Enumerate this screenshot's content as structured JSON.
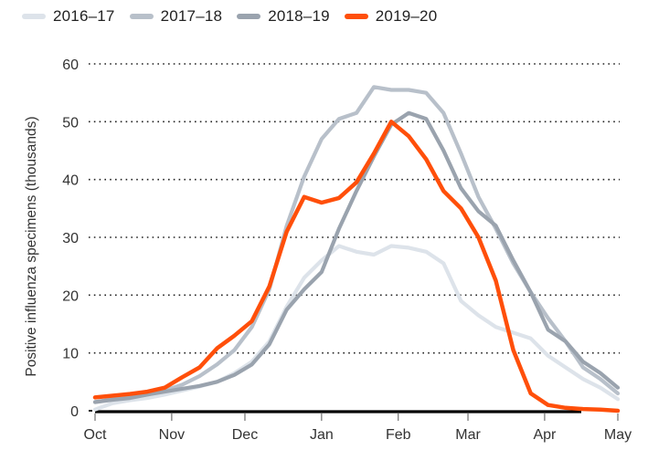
{
  "chart_data": {
    "type": "line",
    "title": "",
    "xlabel": "",
    "ylabel": "Positive influenza specimens (thousands)",
    "ylim": [
      0,
      60
    ],
    "yticks": [
      0,
      10,
      20,
      30,
      40,
      50,
      60
    ],
    "ytick_labels": [
      "0",
      "10",
      "20",
      "30",
      "40",
      "50",
      "60"
    ],
    "xticks": [
      "Oct",
      "Nov",
      "Dec",
      "Jan",
      "Feb",
      "Mar",
      "Apr",
      "May"
    ],
    "xlim_weeks": [
      0,
      30
    ],
    "xtick_weeks": [
      0,
      4.4,
      8.6,
      13,
      17.4,
      21.4,
      25.8,
      30
    ],
    "grid": "horizontal-dotted",
    "legend_position": "top-left",
    "series": [
      {
        "name": "2016–17",
        "color": "#dde3ea",
        "x": [
          0,
          1,
          2,
          3,
          4,
          5,
          6,
          7,
          8,
          9,
          10,
          11,
          12,
          13,
          14,
          15,
          16,
          17,
          18,
          19,
          20,
          21,
          22,
          23,
          24,
          25,
          26,
          27,
          28,
          29,
          30
        ],
        "values": [
          0.2,
          1.3,
          1.8,
          2.2,
          2.8,
          3.5,
          4.2,
          5.0,
          6.5,
          8.5,
          12.0,
          18.0,
          23.0,
          26.0,
          28.5,
          27.5,
          27.0,
          28.5,
          28.2,
          27.5,
          25.5,
          19.0,
          16.5,
          14.5,
          13.5,
          12.5,
          9.5,
          7.5,
          5.5,
          4.0,
          2.0
        ]
      },
      {
        "name": "2017–18",
        "color": "#b8c0ca",
        "x": [
          0,
          1,
          2,
          3,
          4,
          5,
          6,
          7,
          8,
          9,
          10,
          11,
          12,
          13,
          14,
          15,
          16,
          17,
          18,
          19,
          20,
          21,
          22,
          23,
          24,
          25,
          26,
          27,
          28,
          29,
          30
        ],
        "values": [
          1.5,
          2.0,
          2.3,
          2.8,
          3.5,
          4.5,
          6.0,
          8.0,
          10.5,
          14.5,
          21.0,
          32.0,
          40.5,
          47.0,
          50.5,
          51.5,
          56.0,
          55.5,
          55.5,
          55.0,
          51.5,
          44.5,
          37.0,
          31.5,
          25.5,
          20.5,
          16.0,
          12.0,
          7.5,
          5.5,
          3.0
        ]
      },
      {
        "name": "2018–19",
        "color": "#9aa3ae",
        "x": [
          0,
          1,
          2,
          3,
          4,
          5,
          6,
          7,
          8,
          9,
          10,
          11,
          12,
          13,
          14,
          15,
          16,
          17,
          18,
          19,
          20,
          21,
          22,
          23,
          24,
          25,
          26,
          27,
          28,
          29,
          30
        ],
        "values": [
          1.5,
          1.9,
          2.2,
          2.8,
          3.3,
          3.8,
          4.3,
          5.0,
          6.2,
          8.0,
          11.5,
          17.5,
          21.0,
          24.0,
          31.5,
          38.0,
          44.0,
          49.5,
          51.5,
          50.5,
          45.0,
          38.5,
          34.5,
          32.0,
          26.0,
          20.5,
          14.0,
          12.0,
          8.5,
          6.5,
          4.0
        ]
      },
      {
        "name": "2019–20",
        "color": "#ff4f0a",
        "x": [
          0,
          1,
          2,
          3,
          4,
          5,
          6,
          7,
          8,
          9,
          10,
          11,
          12,
          13,
          14,
          15,
          16,
          17,
          18,
          19,
          20,
          21,
          22,
          23,
          24,
          25,
          26,
          27,
          28,
          29,
          30
        ],
        "values": [
          2.3,
          2.6,
          2.9,
          3.3,
          4.0,
          5.8,
          7.5,
          10.8,
          13.0,
          15.5,
          21.5,
          31.0,
          37.0,
          36.0,
          36.8,
          39.5,
          44.5,
          50.0,
          47.5,
          43.5,
          38.0,
          35.0,
          30.0,
          22.5,
          10.5,
          3.0,
          1.0,
          0.5,
          0.3,
          0.2,
          0.0
        ]
      }
    ]
  }
}
